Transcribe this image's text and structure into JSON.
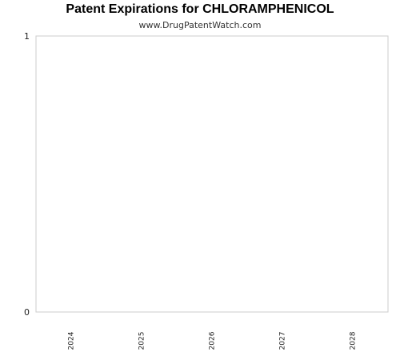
{
  "chart_data": {
    "type": "bar",
    "title": "Patent Expirations for CHLORAMPHENICOL",
    "subtitle": "www.DrugPatentWatch.com",
    "categories": [
      "2024",
      "2025",
      "2026",
      "2027",
      "2028"
    ],
    "values": [
      0,
      0,
      0,
      0,
      0
    ],
    "ylim": [
      0,
      1
    ],
    "yticks": [
      "0",
      "1"
    ],
    "xlabel": "",
    "ylabel": "",
    "grid": false,
    "colors": {
      "axis": "#cccccc",
      "background": "#ffffff",
      "bar": "#4a7ebb"
    }
  }
}
